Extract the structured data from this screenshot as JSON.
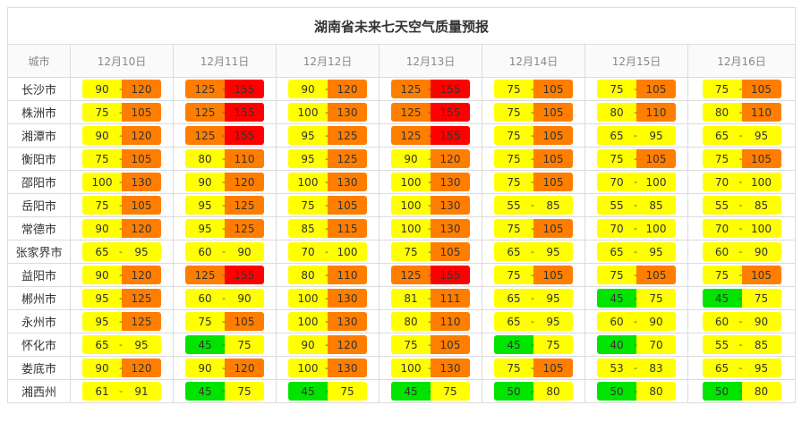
{
  "title": "湖南省未来七天空气质量预报",
  "city_header": "城市",
  "dates": [
    "12月10日",
    "12月11日",
    "12月12日",
    "12月13日",
    "12月14日",
    "12月15日",
    "12月16日"
  ],
  "colors": {
    "yellow": "#ffff00",
    "orange": "#ff7e00",
    "red": "#ff0000",
    "green": "#00e400"
  },
  "rows": [
    {
      "city": "长沙市",
      "cells": [
        {
          "lo": "90",
          "hi": "120",
          "lc": "yellow",
          "hc": "orange"
        },
        {
          "lo": "125",
          "hi": "155",
          "lc": "orange",
          "hc": "red"
        },
        {
          "lo": "90",
          "hi": "120",
          "lc": "yellow",
          "hc": "orange"
        },
        {
          "lo": "125",
          "hi": "155",
          "lc": "orange",
          "hc": "red"
        },
        {
          "lo": "75",
          "hi": "105",
          "lc": "yellow",
          "hc": "orange"
        },
        {
          "lo": "75",
          "hi": "105",
          "lc": "yellow",
          "hc": "orange"
        },
        {
          "lo": "75",
          "hi": "105",
          "lc": "yellow",
          "hc": "orange"
        }
      ]
    },
    {
      "city": "株洲市",
      "cells": [
        {
          "lo": "75",
          "hi": "105",
          "lc": "yellow",
          "hc": "orange"
        },
        {
          "lo": "125",
          "hi": "155",
          "lc": "orange",
          "hc": "red"
        },
        {
          "lo": "100",
          "hi": "130",
          "lc": "yellow",
          "hc": "orange"
        },
        {
          "lo": "125",
          "hi": "155",
          "lc": "orange",
          "hc": "red"
        },
        {
          "lo": "75",
          "hi": "105",
          "lc": "yellow",
          "hc": "orange"
        },
        {
          "lo": "80",
          "hi": "110",
          "lc": "yellow",
          "hc": "orange"
        },
        {
          "lo": "80",
          "hi": "110",
          "lc": "yellow",
          "hc": "orange"
        }
      ]
    },
    {
      "city": "湘潭市",
      "cells": [
        {
          "lo": "90",
          "hi": "120",
          "lc": "yellow",
          "hc": "orange"
        },
        {
          "lo": "125",
          "hi": "155",
          "lc": "orange",
          "hc": "red"
        },
        {
          "lo": "95",
          "hi": "125",
          "lc": "yellow",
          "hc": "orange"
        },
        {
          "lo": "125",
          "hi": "155",
          "lc": "orange",
          "hc": "red"
        },
        {
          "lo": "75",
          "hi": "105",
          "lc": "yellow",
          "hc": "orange"
        },
        {
          "lo": "65",
          "hi": "95",
          "lc": "yellow",
          "hc": "yellow"
        },
        {
          "lo": "65",
          "hi": "95",
          "lc": "yellow",
          "hc": "yellow"
        }
      ]
    },
    {
      "city": "衡阳市",
      "cells": [
        {
          "lo": "75",
          "hi": "105",
          "lc": "yellow",
          "hc": "orange"
        },
        {
          "lo": "80",
          "hi": "110",
          "lc": "yellow",
          "hc": "orange"
        },
        {
          "lo": "95",
          "hi": "125",
          "lc": "yellow",
          "hc": "orange"
        },
        {
          "lo": "90",
          "hi": "120",
          "lc": "yellow",
          "hc": "orange"
        },
        {
          "lo": "75",
          "hi": "105",
          "lc": "yellow",
          "hc": "orange"
        },
        {
          "lo": "75",
          "hi": "105",
          "lc": "yellow",
          "hc": "orange"
        },
        {
          "lo": "75",
          "hi": "105",
          "lc": "yellow",
          "hc": "orange"
        }
      ]
    },
    {
      "city": "邵阳市",
      "cells": [
        {
          "lo": "100",
          "hi": "130",
          "lc": "yellow",
          "hc": "orange"
        },
        {
          "lo": "90",
          "hi": "120",
          "lc": "yellow",
          "hc": "orange"
        },
        {
          "lo": "100",
          "hi": "130",
          "lc": "yellow",
          "hc": "orange"
        },
        {
          "lo": "100",
          "hi": "130",
          "lc": "yellow",
          "hc": "orange"
        },
        {
          "lo": "75",
          "hi": "105",
          "lc": "yellow",
          "hc": "orange"
        },
        {
          "lo": "70",
          "hi": "100",
          "lc": "yellow",
          "hc": "yellow"
        },
        {
          "lo": "70",
          "hi": "100",
          "lc": "yellow",
          "hc": "yellow"
        }
      ]
    },
    {
      "city": "岳阳市",
      "cells": [
        {
          "lo": "75",
          "hi": "105",
          "lc": "yellow",
          "hc": "orange"
        },
        {
          "lo": "95",
          "hi": "125",
          "lc": "yellow",
          "hc": "orange"
        },
        {
          "lo": "75",
          "hi": "105",
          "lc": "yellow",
          "hc": "orange"
        },
        {
          "lo": "100",
          "hi": "130",
          "lc": "yellow",
          "hc": "orange"
        },
        {
          "lo": "55",
          "hi": "85",
          "lc": "yellow",
          "hc": "yellow"
        },
        {
          "lo": "55",
          "hi": "85",
          "lc": "yellow",
          "hc": "yellow"
        },
        {
          "lo": "55",
          "hi": "85",
          "lc": "yellow",
          "hc": "yellow"
        }
      ]
    },
    {
      "city": "常德市",
      "cells": [
        {
          "lo": "90",
          "hi": "120",
          "lc": "yellow",
          "hc": "orange"
        },
        {
          "lo": "95",
          "hi": "125",
          "lc": "yellow",
          "hc": "orange"
        },
        {
          "lo": "85",
          "hi": "115",
          "lc": "yellow",
          "hc": "orange"
        },
        {
          "lo": "100",
          "hi": "130",
          "lc": "yellow",
          "hc": "orange"
        },
        {
          "lo": "75",
          "hi": "105",
          "lc": "yellow",
          "hc": "orange"
        },
        {
          "lo": "70",
          "hi": "100",
          "lc": "yellow",
          "hc": "yellow"
        },
        {
          "lo": "70",
          "hi": "100",
          "lc": "yellow",
          "hc": "yellow"
        }
      ]
    },
    {
      "city": "张家界市",
      "cells": [
        {
          "lo": "65",
          "hi": "95",
          "lc": "yellow",
          "hc": "yellow"
        },
        {
          "lo": "60",
          "hi": "90",
          "lc": "yellow",
          "hc": "yellow"
        },
        {
          "lo": "70",
          "hi": "100",
          "lc": "yellow",
          "hc": "yellow"
        },
        {
          "lo": "75",
          "hi": "105",
          "lc": "yellow",
          "hc": "orange"
        },
        {
          "lo": "65",
          "hi": "95",
          "lc": "yellow",
          "hc": "yellow"
        },
        {
          "lo": "65",
          "hi": "95",
          "lc": "yellow",
          "hc": "yellow"
        },
        {
          "lo": "60",
          "hi": "90",
          "lc": "yellow",
          "hc": "yellow"
        }
      ]
    },
    {
      "city": "益阳市",
      "cells": [
        {
          "lo": "90",
          "hi": "120",
          "lc": "yellow",
          "hc": "orange"
        },
        {
          "lo": "125",
          "hi": "155",
          "lc": "orange",
          "hc": "red"
        },
        {
          "lo": "80",
          "hi": "110",
          "lc": "yellow",
          "hc": "orange"
        },
        {
          "lo": "125",
          "hi": "155",
          "lc": "orange",
          "hc": "red"
        },
        {
          "lo": "75",
          "hi": "105",
          "lc": "yellow",
          "hc": "orange"
        },
        {
          "lo": "75",
          "hi": "105",
          "lc": "yellow",
          "hc": "orange"
        },
        {
          "lo": "75",
          "hi": "105",
          "lc": "yellow",
          "hc": "orange"
        }
      ]
    },
    {
      "city": "郴州市",
      "cells": [
        {
          "lo": "95",
          "hi": "125",
          "lc": "yellow",
          "hc": "orange"
        },
        {
          "lo": "60",
          "hi": "90",
          "lc": "yellow",
          "hc": "yellow"
        },
        {
          "lo": "100",
          "hi": "130",
          "lc": "yellow",
          "hc": "orange"
        },
        {
          "lo": "81",
          "hi": "111",
          "lc": "yellow",
          "hc": "orange"
        },
        {
          "lo": "65",
          "hi": "95",
          "lc": "yellow",
          "hc": "yellow"
        },
        {
          "lo": "45",
          "hi": "75",
          "lc": "green",
          "hc": "yellow"
        },
        {
          "lo": "45",
          "hi": "75",
          "lc": "green",
          "hc": "yellow"
        }
      ]
    },
    {
      "city": "永州市",
      "cells": [
        {
          "lo": "95",
          "hi": "125",
          "lc": "yellow",
          "hc": "orange"
        },
        {
          "lo": "75",
          "hi": "105",
          "lc": "yellow",
          "hc": "orange"
        },
        {
          "lo": "100",
          "hi": "130",
          "lc": "yellow",
          "hc": "orange"
        },
        {
          "lo": "80",
          "hi": "110",
          "lc": "yellow",
          "hc": "orange"
        },
        {
          "lo": "65",
          "hi": "95",
          "lc": "yellow",
          "hc": "yellow"
        },
        {
          "lo": "60",
          "hi": "90",
          "lc": "yellow",
          "hc": "yellow"
        },
        {
          "lo": "60",
          "hi": "90",
          "lc": "yellow",
          "hc": "yellow"
        }
      ]
    },
    {
      "city": "怀化市",
      "cells": [
        {
          "lo": "65",
          "hi": "95",
          "lc": "yellow",
          "hc": "yellow"
        },
        {
          "lo": "45",
          "hi": "75",
          "lc": "green",
          "hc": "yellow"
        },
        {
          "lo": "90",
          "hi": "120",
          "lc": "yellow",
          "hc": "orange"
        },
        {
          "lo": "75",
          "hi": "105",
          "lc": "yellow",
          "hc": "orange"
        },
        {
          "lo": "45",
          "hi": "75",
          "lc": "green",
          "hc": "yellow"
        },
        {
          "lo": "40",
          "hi": "70",
          "lc": "green",
          "hc": "yellow"
        },
        {
          "lo": "55",
          "hi": "85",
          "lc": "yellow",
          "hc": "yellow"
        }
      ]
    },
    {
      "city": "娄底市",
      "cells": [
        {
          "lo": "90",
          "hi": "120",
          "lc": "yellow",
          "hc": "orange"
        },
        {
          "lo": "90",
          "hi": "120",
          "lc": "yellow",
          "hc": "orange"
        },
        {
          "lo": "100",
          "hi": "130",
          "lc": "yellow",
          "hc": "orange"
        },
        {
          "lo": "100",
          "hi": "130",
          "lc": "yellow",
          "hc": "orange"
        },
        {
          "lo": "75",
          "hi": "105",
          "lc": "yellow",
          "hc": "orange"
        },
        {
          "lo": "53",
          "hi": "83",
          "lc": "yellow",
          "hc": "yellow"
        },
        {
          "lo": "65",
          "hi": "95",
          "lc": "yellow",
          "hc": "yellow"
        }
      ]
    },
    {
      "city": "湘西州",
      "cells": [
        {
          "lo": "61",
          "hi": "91",
          "lc": "yellow",
          "hc": "yellow"
        },
        {
          "lo": "45",
          "hi": "75",
          "lc": "green",
          "hc": "yellow"
        },
        {
          "lo": "45",
          "hi": "75",
          "lc": "green",
          "hc": "yellow"
        },
        {
          "lo": "45",
          "hi": "75",
          "lc": "green",
          "hc": "yellow"
        },
        {
          "lo": "50",
          "hi": "80",
          "lc": "green",
          "hc": "yellow"
        },
        {
          "lo": "50",
          "hi": "80",
          "lc": "green",
          "hc": "yellow"
        },
        {
          "lo": "50",
          "hi": "80",
          "lc": "green",
          "hc": "yellow"
        }
      ]
    }
  ]
}
